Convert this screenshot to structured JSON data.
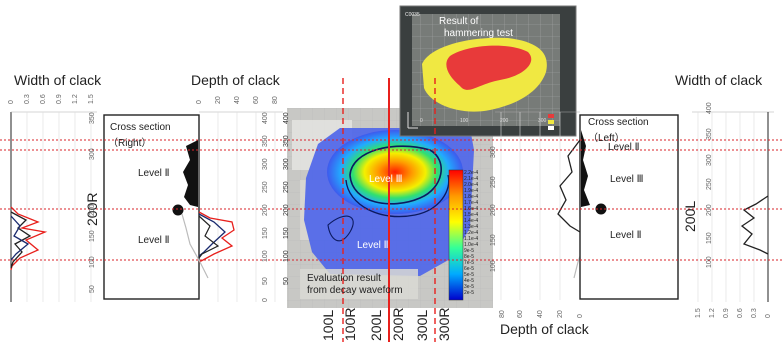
{
  "labels": {
    "width_left": "Width of clack",
    "depth_left": "Depth of clack",
    "width_right": "Width of clack",
    "depth_right": "Depth of clack",
    "cross_right_1": "Cross section",
    "cross_right_2": "（Right）",
    "cross_left_1": "Cross section",
    "cross_left_2": "（Left）",
    "section_200r": "200R",
    "section_200l": "200L",
    "level_ii": "Level Ⅱ",
    "level_iii": "Level Ⅲ",
    "hammer_1": "Result of",
    "hammer_2": "hammering test",
    "eval_1": "Evaluation result",
    "eval_2": "from decay waveform",
    "photo_code": "C0035"
  },
  "bottom_markers": [
    "100L",
    "100R",
    "200L",
    "200R",
    "300L",
    "300R"
  ],
  "axes": {
    "width_ticks_left": [
      "0",
      "0.3",
      "0.6",
      "0.9",
      "1.2",
      "1.5"
    ],
    "depth_ticks_left": [
      "0",
      "20",
      "40",
      "60",
      "80"
    ],
    "depth_ticks_right": [
      "80",
      "60",
      "40",
      "20",
      "0"
    ],
    "width_ticks_right": [
      "1.5",
      "1.2",
      "0.9",
      "0.6",
      "0.3",
      "0"
    ],
    "height_ticks": [
      "400",
      "350",
      "300",
      "250",
      "200",
      "150",
      "100",
      "50",
      "0"
    ],
    "center_height_ticks": [
      "400",
      "350",
      "300",
      "250",
      "200",
      "150",
      "100",
      "50",
      "0"
    ],
    "hammer_x_ticks": [
      "0",
      "100",
      "200",
      "300"
    ]
  },
  "colorbar": [
    "2.2e-4",
    "2.1e-4",
    "2.0e-4",
    "1.9e-4",
    "1.8e-4",
    "1.7e-4",
    "1.6e-4",
    "1.5e-4",
    "1.4e-4",
    "1.3e-4",
    "1.2e-4",
    "1.1e-4",
    "1.0e-4",
    "9e-5",
    "8e-5",
    "7e-5",
    "6e-5",
    "5e-5",
    "4e-5",
    "3e-5",
    "2e-5"
  ],
  "colors": {
    "red_line": "#e8201c",
    "dotted": "#d9232a",
    "red_area": "#e83a3a",
    "yellow_area": "#f0e842"
  }
}
